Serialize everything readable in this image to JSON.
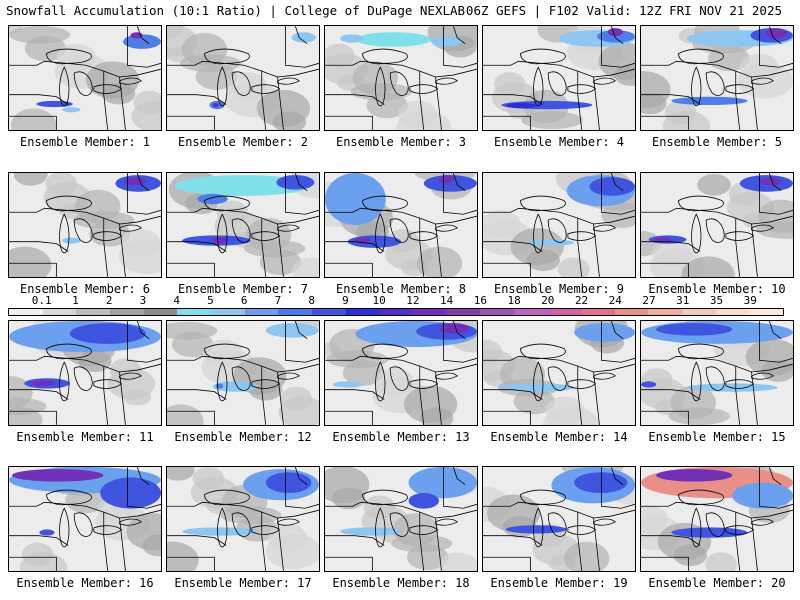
{
  "header": {
    "left_title": "Snowfall Accumulation (10:1 Ratio) | College of DuPage NEXLAB",
    "right_title": "06Z GEFS | F102 Valid: 12Z FRI NOV 21 2025"
  },
  "colorbar": {
    "ticks": [
      "0.1",
      "1",
      "2",
      "3",
      "4",
      "5",
      "6",
      "7",
      "8",
      "9",
      "10",
      "12",
      "14",
      "16",
      "18",
      "20",
      "22",
      "24",
      "27",
      "31",
      "35",
      "39"
    ],
    "colors": [
      "#f0f0f0",
      "#d8d8d8",
      "#bdbdbd",
      "#a0a0a0",
      "#8a8a8a",
      "#7fe0ea",
      "#8ec6f2",
      "#6aa0ee",
      "#4d7de8",
      "#3f55e0",
      "#2f2fd8",
      "#5030c8",
      "#7030b8",
      "#8a3aa8",
      "#a050b8",
      "#c060c0",
      "#d060a8",
      "#e07090",
      "#e89088",
      "#f0b0a0",
      "#f4c8b8",
      "#f8dcc8",
      "#fbe8d8"
    ]
  },
  "members": [
    {
      "label": "Ensemble Member: 1",
      "snow": [
        [
          0.18,
          0.72,
          0.24,
          0.06,
          "#3f55e0"
        ],
        [
          0.35,
          0.78,
          0.12,
          0.05,
          "#8ec6f2"
        ],
        [
          0.75,
          0.08,
          0.25,
          0.14,
          "#4d7de8"
        ],
        [
          0.8,
          0.06,
          0.08,
          0.06,
          "#7030b8"
        ]
      ]
    },
    {
      "label": "Ensemble Member: 2",
      "snow": [
        [
          0.28,
          0.72,
          0.1,
          0.08,
          "#4d7de8"
        ],
        [
          0.3,
          0.74,
          0.04,
          0.04,
          "#5030c8"
        ],
        [
          0.82,
          0.06,
          0.16,
          0.1,
          "#8ec6f2"
        ]
      ]
    },
    {
      "label": "Ensemble Member: 3",
      "snow": [
        [
          0.2,
          0.06,
          0.5,
          0.14,
          "#7fe0ea"
        ],
        [
          0.1,
          0.08,
          0.15,
          0.08,
          "#8ec6f2"
        ],
        [
          0.7,
          0.1,
          0.2,
          0.1,
          "#8ec6f2"
        ]
      ]
    },
    {
      "label": "Ensemble Member: 4",
      "snow": [
        [
          0.12,
          0.72,
          0.6,
          0.08,
          "#3f55e0"
        ],
        [
          0.15,
          0.74,
          0.2,
          0.05,
          "#2f2fd8"
        ],
        [
          0.5,
          0.04,
          0.5,
          0.16,
          "#8ec6f2"
        ],
        [
          0.75,
          0.04,
          0.25,
          0.12,
          "#4d7de8"
        ],
        [
          0.82,
          0.02,
          0.1,
          0.08,
          "#7030b8"
        ]
      ]
    },
    {
      "label": "Ensemble Member: 5",
      "snow": [
        [
          0.3,
          0.04,
          0.7,
          0.16,
          "#8ec6f2"
        ],
        [
          0.72,
          0.02,
          0.28,
          0.14,
          "#3f55e0"
        ],
        [
          0.82,
          0.02,
          0.14,
          0.1,
          "#7030b8"
        ],
        [
          0.2,
          0.68,
          0.5,
          0.08,
          "#4d7de8"
        ]
      ]
    },
    {
      "label": "Ensemble Member: 6",
      "snow": [
        [
          0.7,
          0.02,
          0.3,
          0.16,
          "#3f55e0"
        ],
        [
          0.76,
          0.04,
          0.14,
          0.08,
          "#7030b8"
        ],
        [
          0.35,
          0.62,
          0.12,
          0.06,
          "#8ec6f2"
        ]
      ]
    },
    {
      "label": "Ensemble Member: 7",
      "snow": [
        [
          0.05,
          0.02,
          0.9,
          0.2,
          "#7fe0ea"
        ],
        [
          0.2,
          0.2,
          0.2,
          0.1,
          "#4d7de8"
        ],
        [
          0.1,
          0.6,
          0.45,
          0.1,
          "#3f55e0"
        ],
        [
          0.3,
          0.62,
          0.1,
          0.06,
          "#7030b8"
        ],
        [
          0.72,
          0.02,
          0.25,
          0.14,
          "#3f55e0"
        ]
      ]
    },
    {
      "label": "Ensemble Member: 8",
      "snow": [
        [
          0,
          0,
          0.4,
          0.5,
          "#6aa0ee"
        ],
        [
          0.15,
          0.6,
          0.35,
          0.12,
          "#3f55e0"
        ],
        [
          0.2,
          0.62,
          0.1,
          0.06,
          "#7030b8"
        ],
        [
          0.65,
          0.02,
          0.35,
          0.16,
          "#3f55e0"
        ],
        [
          0.75,
          0.02,
          0.1,
          0.08,
          "#7030b8"
        ]
      ]
    },
    {
      "label": "Ensemble Member: 9",
      "snow": [
        [
          0.55,
          0.02,
          0.45,
          0.3,
          "#6aa0ee"
        ],
        [
          0.7,
          0.04,
          0.3,
          0.18,
          "#3f55e0"
        ],
        [
          0.3,
          0.64,
          0.3,
          0.06,
          "#8ec6f2"
        ]
      ]
    },
    {
      "label": "Ensemble Member: 10",
      "snow": [
        [
          0.65,
          0.02,
          0.35,
          0.16,
          "#3f55e0"
        ],
        [
          0.78,
          0.04,
          0.14,
          0.08,
          "#7030b8"
        ],
        [
          0.05,
          0.6,
          0.25,
          0.08,
          "#3f55e0"
        ],
        [
          0.08,
          0.62,
          0.12,
          0.05,
          "#7030b8"
        ]
      ]
    },
    {
      "label": "Ensemble Member: 11",
      "snow": [
        [
          0,
          0,
          1,
          0.3,
          "#6aa0ee"
        ],
        [
          0.4,
          0.02,
          0.5,
          0.2,
          "#3f55e0"
        ],
        [
          0.1,
          0.55,
          0.3,
          0.1,
          "#3f55e0"
        ],
        [
          0.15,
          0.57,
          0.15,
          0.06,
          "#7030b8"
        ]
      ]
    },
    {
      "label": "Ensemble Member: 12",
      "snow": [
        [
          0.65,
          0.02,
          0.35,
          0.14,
          "#8ec6f2"
        ],
        [
          0.3,
          0.58,
          0.3,
          0.1,
          "#8ec6f2"
        ],
        [
          0.32,
          0.6,
          0.05,
          0.05,
          "#4d7de8"
        ]
      ]
    },
    {
      "label": "Ensemble Member: 13",
      "snow": [
        [
          0.2,
          0,
          0.8,
          0.25,
          "#6aa0ee"
        ],
        [
          0.6,
          0.02,
          0.4,
          0.16,
          "#3f55e0"
        ],
        [
          0.75,
          0.02,
          0.2,
          0.1,
          "#7030b8"
        ],
        [
          0.05,
          0.58,
          0.2,
          0.06,
          "#8ec6f2"
        ]
      ]
    },
    {
      "label": "Ensemble Member: 14",
      "snow": [
        [
          0.6,
          0.02,
          0.4,
          0.18,
          "#6aa0ee"
        ],
        [
          0.1,
          0.6,
          0.5,
          0.08,
          "#8ec6f2"
        ]
      ]
    },
    {
      "label": "Ensemble Member: 15",
      "snow": [
        [
          0,
          0,
          1,
          0.22,
          "#6aa0ee"
        ],
        [
          0.1,
          0.02,
          0.5,
          0.12,
          "#3f55e0"
        ],
        [
          0,
          0.58,
          0.1,
          0.06,
          "#3f55e0"
        ],
        [
          0.3,
          0.6,
          0.6,
          0.08,
          "#8ec6f2"
        ]
      ]
    },
    {
      "label": "Ensemble Member: 16",
      "snow": [
        [
          0,
          0,
          1,
          0.25,
          "#6aa0ee"
        ],
        [
          0.02,
          0.02,
          0.6,
          0.12,
          "#7030b8"
        ],
        [
          0.6,
          0.1,
          0.4,
          0.3,
          "#3f55e0"
        ],
        [
          0.2,
          0.6,
          0.1,
          0.06,
          "#3f55e0"
        ]
      ]
    },
    {
      "label": "Ensemble Member: 17",
      "snow": [
        [
          0.5,
          0.02,
          0.5,
          0.3,
          "#6aa0ee"
        ],
        [
          0.65,
          0.05,
          0.3,
          0.2,
          "#3f55e0"
        ],
        [
          0.1,
          0.58,
          0.5,
          0.08,
          "#8ec6f2"
        ]
      ]
    },
    {
      "label": "Ensemble Member: 18",
      "snow": [
        [
          0.55,
          0,
          0.45,
          0.3,
          "#6aa0ee"
        ],
        [
          0.55,
          0.25,
          0.2,
          0.15,
          "#3f55e0"
        ],
        [
          0.1,
          0.58,
          0.4,
          0.08,
          "#8ec6f2"
        ]
      ]
    },
    {
      "label": "Ensemble Member: 19",
      "snow": [
        [
          0.45,
          0,
          0.55,
          0.35,
          "#6aa0ee"
        ],
        [
          0.6,
          0.05,
          0.35,
          0.2,
          "#3f55e0"
        ],
        [
          0.15,
          0.56,
          0.4,
          0.08,
          "#3f55e0"
        ]
      ]
    },
    {
      "label": "Ensemble Member: 20",
      "snow": [
        [
          0,
          0,
          1,
          0.3,
          "#e89088"
        ],
        [
          0.1,
          0.02,
          0.5,
          0.12,
          "#7030b8"
        ],
        [
          0.6,
          0.15,
          0.4,
          0.25,
          "#6aa0ee"
        ],
        [
          0.2,
          0.58,
          0.5,
          0.1,
          "#3f55e0"
        ]
      ]
    }
  ]
}
